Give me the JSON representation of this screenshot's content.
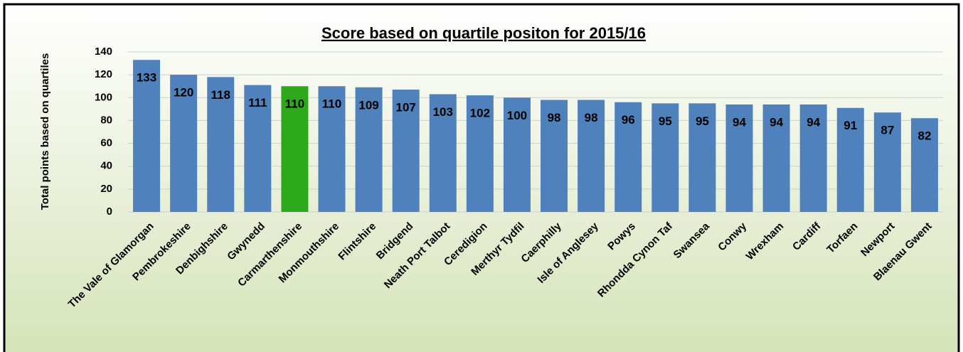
{
  "chart_data": {
    "type": "bar",
    "title": "Score based on quartile positon for 2015/16",
    "y_label": "Total points based on quartiles",
    "categories": [
      "The Vale of Glamorgan",
      "Pembrokeshire",
      "Denbighshire",
      "Gwynedd",
      "Carmarthenshire",
      "Monmouthshire",
      "Flintshire",
      "Bridgend",
      "Neath Port Talbot",
      "Ceredigion",
      "Merthyr Tydfil",
      "Caerphilly",
      "Isle of Anglesey",
      "Powys",
      "Rhondda Cynon Taf",
      "Swansea",
      "Conwy",
      "Wrexham",
      "Cardiff",
      "Torfaen",
      "Newport",
      "Blaenau Gwent"
    ],
    "values": [
      133,
      120,
      118,
      111,
      110,
      110,
      109,
      107,
      103,
      102,
      100,
      98,
      98,
      96,
      95,
      95,
      94,
      94,
      94,
      91,
      87,
      82
    ],
    "colors": [
      "#4f81bd",
      "#4f81bd",
      "#4f81bd",
      "#4f81bd",
      "#2ea81b",
      "#4f81bd",
      "#4f81bd",
      "#4f81bd",
      "#4f81bd",
      "#4f81bd",
      "#4f81bd",
      "#4f81bd",
      "#4f81bd",
      "#4f81bd",
      "#4f81bd",
      "#4f81bd",
      "#4f81bd",
      "#4f81bd",
      "#4f81bd",
      "#4f81bd",
      "#4f81bd",
      "#4f81bd"
    ],
    "ylim": [
      0,
      140
    ],
    "yticks": [
      0,
      20,
      40,
      60,
      80,
      100,
      120,
      140
    ],
    "grid": true
  }
}
